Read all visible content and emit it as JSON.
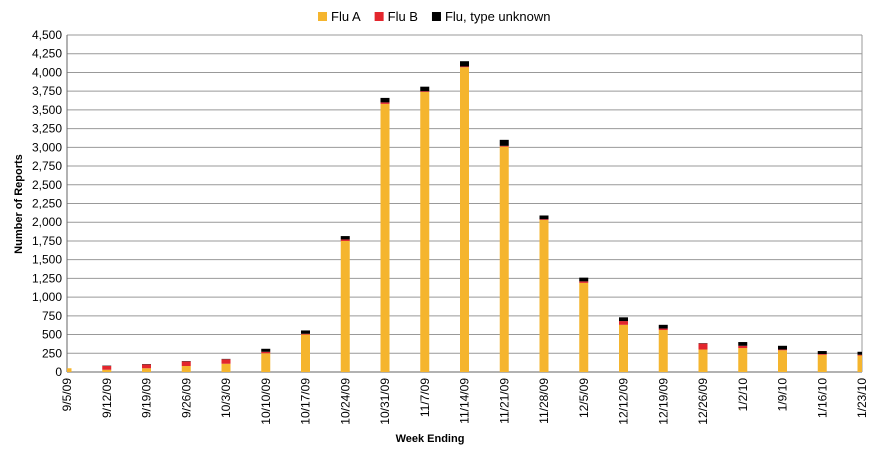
{
  "chart_data": {
    "type": "stacked_bar",
    "categories": [
      "9/5/09",
      "9/12/09",
      "9/19/09",
      "9/26/09",
      "10/3/09",
      "10/10/09",
      "10/17/09",
      "10/24/09",
      "10/31/09",
      "11/7/09",
      "11/14/09",
      "11/21/09",
      "11/28/09",
      "12/5/09",
      "12/12/09",
      "12/19/09",
      "12/26/09",
      "1/2/10",
      "1/9/10",
      "1/16/10",
      "1/23/10"
    ],
    "series": [
      {
        "name": "Flu A",
        "color": "#f5b52e",
        "values": [
          50,
          30,
          50,
          80,
          110,
          250,
          500,
          1750,
          3580,
          3740,
          4070,
          3010,
          2030,
          1190,
          630,
          560,
          300,
          320,
          290,
          230,
          220
        ]
      },
      {
        "name": "Flu B",
        "color": "#e3262d",
        "values": [
          0,
          50,
          50,
          60,
          60,
          20,
          10,
          20,
          20,
          10,
          10,
          10,
          10,
          20,
          50,
          20,
          80,
          30,
          10,
          10,
          10
        ]
      },
      {
        "name": "Flu, type unknown",
        "color": "#000000",
        "values": [
          0,
          5,
          5,
          5,
          5,
          40,
          45,
          45,
          60,
          60,
          70,
          80,
          50,
          50,
          50,
          50,
          5,
          50,
          50,
          40,
          40
        ]
      }
    ],
    "xlabel": "Week Ending",
    "ylabel": "Number of Reports",
    "ylim": [
      0,
      4500
    ],
    "yticks": [
      0,
      250,
      500,
      750,
      {
        "value": 1000,
        "label": "1,000"
      },
      {
        "value": 1250,
        "label": "1,250"
      },
      {
        "value": 1500,
        "label": "1,500"
      },
      {
        "value": 1750,
        "label": "1,750"
      },
      {
        "value": 2000,
        "label": "2,000"
      },
      {
        "value": 2250,
        "label": "2,250"
      },
      {
        "value": 2500,
        "label": "2,500"
      },
      {
        "value": 2750,
        "label": "2,750"
      },
      {
        "value": 3000,
        "label": "3,000"
      },
      {
        "value": 3250,
        "label": "3,250"
      },
      {
        "value": 3500,
        "label": "3,500"
      },
      {
        "value": 3750,
        "label": "3,750"
      },
      {
        "value": 4000,
        "label": "4,000"
      },
      {
        "value": 4250,
        "label": "4,250"
      },
      {
        "value": 4500,
        "label": "4,500"
      }
    ],
    "grid": true,
    "legend": "top"
  }
}
